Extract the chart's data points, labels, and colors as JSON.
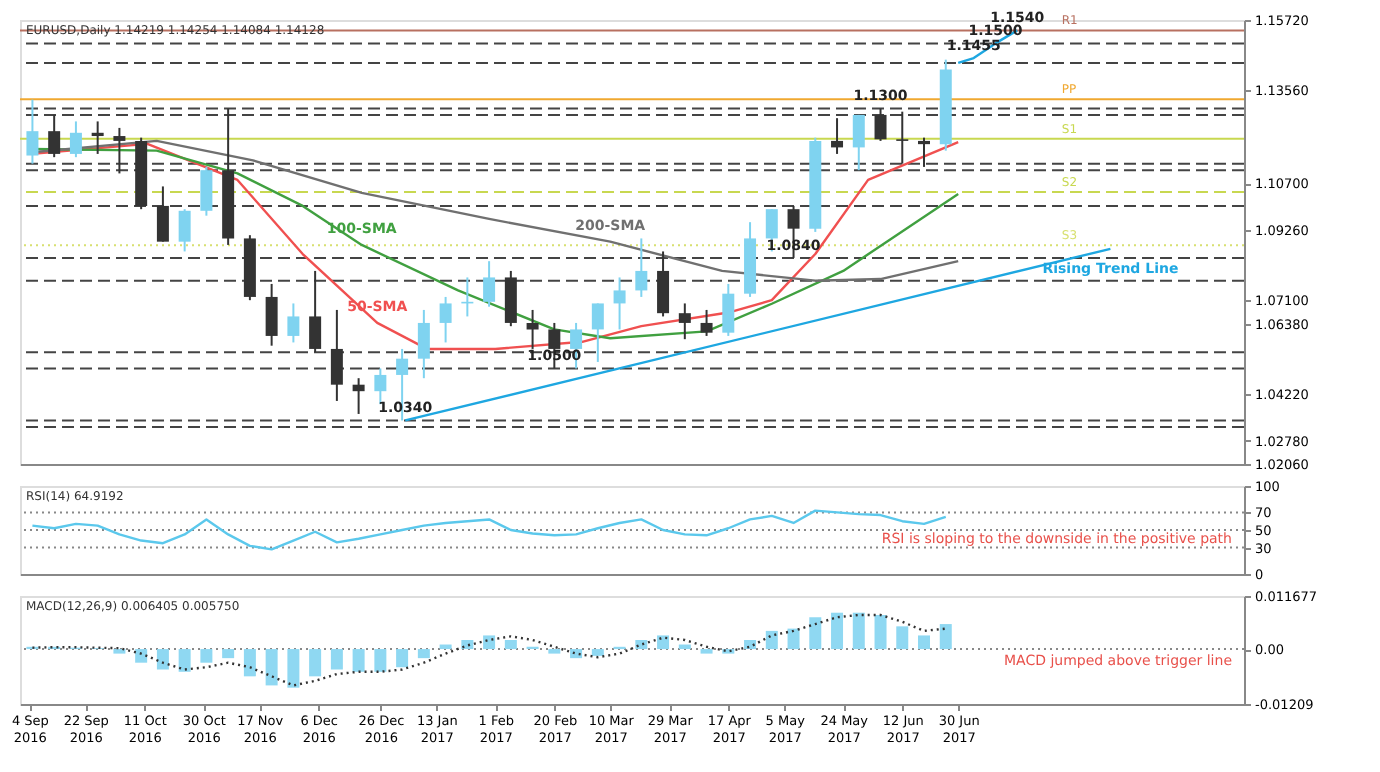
{
  "chart_data": [
    {
      "type": "candlestick",
      "x": [
        "2016-09-05",
        "2016-09-12",
        "2016-09-19",
        "2016-09-26",
        "2016-10-03",
        "2016-10-10",
        "2016-10-17",
        "2016-10-24",
        "2016-10-31",
        "2016-11-07",
        "2016-11-14",
        "2016-11-21",
        "2016-11-28",
        "2016-12-05",
        "2016-12-12",
        "2016-12-19",
        "2016-12-26",
        "2017-01-02",
        "2017-01-09",
        "2017-01-16",
        "2017-01-23",
        "2017-01-30",
        "2017-02-06",
        "2017-02-13",
        "2017-02-20",
        "2017-02-27",
        "2017-03-06",
        "2017-03-13",
        "2017-03-20",
        "2017-03-27",
        "2017-04-03",
        "2017-04-10",
        "2017-04-17",
        "2017-04-24",
        "2017-05-01",
        "2017-05-08",
        "2017-05-15",
        "2017-05-22",
        "2017-05-29",
        "2017-06-05",
        "2017-06-12",
        "2017-06-19",
        "2017-06-26"
      ],
      "ohlc": [
        [
          1.1155,
          1.1327,
          1.113,
          1.123
        ],
        [
          1.123,
          1.128,
          1.115,
          1.116
        ],
        [
          1.116,
          1.126,
          1.115,
          1.1225
        ],
        [
          1.1225,
          1.126,
          1.116,
          1.1215
        ],
        [
          1.1215,
          1.124,
          1.11,
          1.12
        ],
        [
          1.12,
          1.121,
          1.099,
          1.1
        ],
        [
          1.1,
          1.106,
          1.089,
          1.089
        ],
        [
          1.089,
          1.099,
          1.086,
          1.0985
        ],
        [
          1.0985,
          1.112,
          1.097,
          1.111
        ],
        [
          1.111,
          1.13,
          1.088,
          1.09
        ],
        [
          1.09,
          1.091,
          1.071,
          1.072
        ],
        [
          1.072,
          1.076,
          1.057,
          1.06
        ],
        [
          1.06,
          1.07,
          1.058,
          1.066
        ],
        [
          1.066,
          1.08,
          1.055,
          1.056
        ],
        [
          1.056,
          1.068,
          1.04,
          1.045
        ],
        [
          1.045,
          1.047,
          1.036,
          1.043
        ],
        [
          1.043,
          1.05,
          1.039,
          1.048
        ],
        [
          1.048,
          1.056,
          1.034,
          1.053
        ],
        [
          1.053,
          1.068,
          1.047,
          1.064
        ],
        [
          1.064,
          1.072,
          1.058,
          1.07
        ],
        [
          1.07,
          1.078,
          1.066,
          1.0705
        ],
        [
          1.0705,
          1.083,
          1.069,
          1.078
        ],
        [
          1.078,
          1.08,
          1.063,
          1.064
        ],
        [
          1.064,
          1.068,
          1.056,
          1.062
        ],
        [
          1.062,
          1.064,
          1.05,
          1.056
        ],
        [
          1.056,
          1.064,
          1.05,
          1.062
        ],
        [
          1.062,
          1.07,
          1.052,
          1.07
        ],
        [
          1.07,
          1.078,
          1.062,
          1.074
        ],
        [
          1.074,
          1.09,
          1.072,
          1.08
        ],
        [
          1.08,
          1.086,
          1.066,
          1.067
        ],
        [
          1.067,
          1.07,
          1.059,
          1.064
        ],
        [
          1.064,
          1.068,
          1.06,
          1.061
        ],
        [
          1.061,
          1.076,
          1.06,
          1.073
        ],
        [
          1.073,
          1.095,
          1.072,
          1.09
        ],
        [
          1.09,
          1.099,
          1.086,
          1.099
        ],
        [
          1.099,
          1.1,
          1.084,
          1.093
        ],
        [
          1.093,
          1.121,
          1.092,
          1.12
        ],
        [
          1.12,
          1.127,
          1.116,
          1.118
        ],
        [
          1.118,
          1.128,
          1.111,
          1.128
        ],
        [
          1.128,
          1.13,
          1.12,
          1.1205
        ],
        [
          1.1205,
          1.129,
          1.113,
          1.12
        ],
        [
          1.12,
          1.121,
          1.112,
          1.119
        ],
        [
          1.119,
          1.145,
          1.117,
          1.142
        ]
      ],
      "colors": [
        "#7fd3f0",
        "#333333",
        "#7fd3f0",
        "#333333",
        "#333333",
        "#333333",
        "#333333",
        "#7fd3f0",
        "#7fd3f0",
        "#333333",
        "#333333",
        "#333333",
        "#7fd3f0",
        "#333333",
        "#333333",
        "#333333",
        "#7fd3f0",
        "#7fd3f0",
        "#7fd3f0",
        "#7fd3f0",
        "#7fd3f0",
        "#7fd3f0",
        "#333333",
        "#333333",
        "#333333",
        "#7fd3f0",
        "#7fd3f0",
        "#7fd3f0",
        "#7fd3f0",
        "#333333",
        "#333333",
        "#333333",
        "#7fd3f0",
        "#7fd3f0",
        "#7fd3f0",
        "#333333",
        "#7fd3f0",
        "#333333",
        "#7fd3f0",
        "#333333",
        "#333333",
        "#333333",
        "#7fd3f0"
      ],
      "series": [
        {
          "type": "line",
          "name": "50-SMA",
          "color": "#f05050",
          "x": [
            "2016-09-05",
            "2016-10-12",
            "2016-11-10",
            "2016-12-01",
            "2016-12-25",
            "2017-01-10",
            "2017-02-01",
            "2017-03-01",
            "2017-03-20",
            "2017-04-17",
            "2017-05-01",
            "2017-05-15",
            "2017-06-01",
            "2017-06-30"
          ],
          "values": [
            1.116,
            1.1191,
            1.108,
            1.0852,
            1.064,
            1.056,
            1.056,
            1.0582,
            1.063,
            1.0672,
            1.071,
            1.0852,
            1.108,
            1.1196
          ]
        },
        {
          "type": "line",
          "name": "100-SMA",
          "color": "#40a040",
          "x": [
            "2016-09-05",
            "2016-10-15",
            "2016-11-10",
            "2016-12-01",
            "2016-12-20",
            "2017-01-20",
            "2017-02-20",
            "2017-03-10",
            "2017-04-10",
            "2017-05-01",
            "2017-05-24",
            "2017-06-30"
          ],
          "values": [
            1.1175,
            1.117,
            1.11,
            1.1,
            1.088,
            1.074,
            1.062,
            1.0593,
            1.0614,
            1.0699,
            1.08,
            1.1037
          ]
        },
        {
          "type": "line",
          "name": "200-SMA",
          "color": "#707070",
          "x": [
            "2016-09-05",
            "2016-10-15",
            "2016-11-15",
            "2016-12-20",
            "2017-01-30",
            "2017-03-10",
            "2017-04-15",
            "2017-05-15",
            "2017-06-05",
            "2017-06-30"
          ],
          "values": [
            1.1165,
            1.12,
            1.114,
            1.104,
            1.096,
            1.089,
            1.08,
            1.077,
            1.0775,
            1.083
          ]
        },
        {
          "type": "line",
          "name": "Rising Trend Line",
          "color": "#1ea7e1",
          "x": [
            "2017-01-03",
            "2017-08-18"
          ],
          "values": [
            1.034,
            1.0868
          ]
        },
        {
          "type": "line",
          "color": "#1ea7e1",
          "x": [
            "2017-06-30",
            "2017-07-05",
            "2017-07-12",
            "2017-07-19"
          ],
          "values": [
            1.144,
            1.1455,
            1.15,
            1.154
          ]
        }
      ],
      "xlim": [
        "2016-09-01",
        "2017-09-30"
      ],
      "ylim": [
        1.0206,
        1.1572
      ],
      "yticks": [
        {
          "value": 1.0206,
          "label": "1.02060"
        },
        {
          "value": 1.0278,
          "label": "1.02780"
        },
        {
          "value": 1.0422,
          "label": "1.04220"
        },
        {
          "value": 1.0638,
          "label": "1.06380"
        },
        {
          "value": 1.071,
          "label": "1.07100"
        },
        {
          "value": 1.0926,
          "label": "1.09260"
        },
        {
          "value": 1.107,
          "label": "1.10700"
        },
        {
          "value": 1.1356,
          "label": "1.13560"
        },
        {
          "value": 1.1572,
          "label": "1.15720"
        }
      ],
      "tick_labels": "y",
      "ref_lines": [
        {
          "axis": "y",
          "value": 1.154,
          "label": "R1",
          "color": "#b87060",
          "line_style": "solid"
        },
        {
          "axis": "y",
          "value": 1.1328,
          "label": "PP",
          "color": "#f0a830",
          "line_style": "solid"
        },
        {
          "axis": "y",
          "value": 1.1207,
          "label": "S1",
          "color": "#c8d850",
          "line_style": "solid"
        },
        {
          "axis": "y",
          "value": 1.1043,
          "label": "S2",
          "color": "#c8d850",
          "line_style": "dashed"
        },
        {
          "axis": "y",
          "value": 1.0879,
          "label": "S3",
          "color": "#d8e070",
          "line_style": "dotted"
        },
        {
          "axis": "y",
          "value": 1.15,
          "color": "#444444",
          "line_style": "dashed"
        },
        {
          "axis": "y",
          "value": 1.144,
          "color": "#444444",
          "line_style": "dashed"
        },
        {
          "axis": "y",
          "value": 1.13,
          "color": "#444444",
          "line_style": "dashed"
        },
        {
          "axis": "y",
          "value": 1.128,
          "color": "#444444",
          "line_style": "dashed"
        },
        {
          "axis": "y",
          "value": 1.113,
          "color": "#444444",
          "line_style": "dashed"
        },
        {
          "axis": "y",
          "value": 1.111,
          "color": "#444444",
          "line_style": "dashed"
        },
        {
          "axis": "y",
          "value": 1.1,
          "color": "#444444",
          "line_style": "dashed"
        },
        {
          "axis": "y",
          "value": 1.084,
          "color": "#444444",
          "line_style": "dashed"
        },
        {
          "axis": "y",
          "value": 1.077,
          "color": "#444444",
          "line_style": "dashed"
        },
        {
          "axis": "y",
          "value": 1.055,
          "color": "#444444",
          "line_style": "dashed"
        },
        {
          "axis": "y",
          "value": 1.05,
          "color": "#444444",
          "line_style": "dashed"
        },
        {
          "axis": "y",
          "value": 1.034,
          "color": "#444444",
          "line_style": "dashed"
        },
        {
          "axis": "y",
          "value": 1.032,
          "color": "#444444",
          "line_style": "dashed"
        }
      ],
      "annotations": [
        "EURUSD,Daily 1.14219 1.14254 1.14084 1.14128",
        {
          "text": "1.1300",
          "x": "2017-06-05",
          "y": 1.13
        },
        {
          "text": "1.0840",
          "x": "2017-05-08",
          "y": 1.084
        },
        {
          "text": "1.0500",
          "x": "2017-02-20",
          "y": 1.05
        },
        {
          "text": "1.0340",
          "x": "2017-01-03",
          "y": 1.034
        },
        {
          "text": "1.1455",
          "x": "2017-07-05",
          "y": 1.1455
        },
        {
          "text": "1.1500",
          "x": "2017-07-12",
          "y": 1.15
        },
        {
          "text": "1.1540",
          "x": "2017-07-19",
          "y": 1.154
        }
      ],
      "grid": false
    },
    {
      "type": "line",
      "x": [
        "2016-09-05",
        "2016-09-12",
        "2016-09-19",
        "2016-09-26",
        "2016-10-03",
        "2016-10-10",
        "2016-10-17",
        "2016-10-24",
        "2016-10-31",
        "2016-11-07",
        "2016-11-14",
        "2016-11-21",
        "2016-11-28",
        "2016-12-05",
        "2016-12-12",
        "2016-12-19",
        "2016-12-26",
        "2017-01-02",
        "2017-01-09",
        "2017-01-16",
        "2017-01-23",
        "2017-01-30",
        "2017-02-06",
        "2017-02-13",
        "2017-02-20",
        "2017-02-27",
        "2017-03-06",
        "2017-03-13",
        "2017-03-20",
        "2017-03-27",
        "2017-04-03",
        "2017-04-10",
        "2017-04-17",
        "2017-04-24",
        "2017-05-01",
        "2017-05-08",
        "2017-05-15",
        "2017-05-22",
        "2017-05-29",
        "2017-06-05",
        "2017-06-12",
        "2017-06-19",
        "2017-06-26"
      ],
      "series": [
        {
          "color": "#5bc8ec",
          "values": [
            55,
            52,
            57,
            55,
            45,
            38,
            35,
            45,
            62,
            45,
            32,
            28,
            38,
            48,
            36,
            40,
            45,
            50,
            55,
            58,
            60,
            62,
            50,
            46,
            44,
            45,
            52,
            58,
            62,
            50,
            45,
            44,
            52,
            62,
            66,
            58,
            72,
            70,
            68,
            67,
            60,
            57,
            65
          ]
        }
      ],
      "xlim": [
        "2016-09-01",
        "2017-09-30"
      ],
      "ylim": [
        0,
        100
      ],
      "yticks": [
        0,
        30,
        50,
        70,
        100
      ],
      "tick_labels": "y",
      "ref_lines": [
        {
          "axis": "y",
          "value": 30,
          "color": "#888888",
          "line_style": "dotted"
        },
        {
          "axis": "y",
          "value": 50,
          "color": "#888888",
          "line_style": "dotted"
        },
        {
          "axis": "y",
          "value": 70,
          "color": "#888888",
          "line_style": "dotted"
        }
      ],
      "annotations": [
        "RSI(14) 64.9192",
        "RSI is sloping to the downside in the positive path"
      ],
      "grid": false
    },
    {
      "type": "bar",
      "x": [
        "2016-09-05",
        "2016-09-12",
        "2016-09-19",
        "2016-09-26",
        "2016-10-03",
        "2016-10-10",
        "2016-10-17",
        "2016-10-24",
        "2016-10-31",
        "2016-11-07",
        "2016-11-14",
        "2016-11-21",
        "2016-11-28",
        "2016-12-05",
        "2016-12-12",
        "2016-12-19",
        "2016-12-26",
        "2017-01-02",
        "2017-01-09",
        "2017-01-16",
        "2017-01-23",
        "2017-01-30",
        "2017-02-06",
        "2017-02-13",
        "2017-02-20",
        "2017-02-27",
        "2017-03-06",
        "2017-03-13",
        "2017-03-20",
        "2017-03-27",
        "2017-04-03",
        "2017-04-10",
        "2017-04-17",
        "2017-04-24",
        "2017-05-01",
        "2017-05-08",
        "2017-05-15",
        "2017-05-22",
        "2017-05-29",
        "2017-06-05",
        "2017-06-12",
        "2017-06-19",
        "2017-06-26"
      ],
      "series": [
        {
          "type": "bar",
          "color": "#8fd8f2",
          "values": [
            0.0005,
            0.0005,
            0.0003,
            0.0002,
            -0.001,
            -0.003,
            -0.0045,
            -0.005,
            -0.003,
            -0.002,
            -0.006,
            -0.008,
            -0.0085,
            -0.006,
            -0.0045,
            -0.005,
            -0.005,
            -0.004,
            -0.002,
            0.001,
            0.002,
            0.003,
            0.002,
            0.0005,
            -0.001,
            -0.002,
            -0.0015,
            0.0005,
            0.002,
            0.003,
            0.001,
            -0.001,
            -0.001,
            0.002,
            0.004,
            0.0045,
            0.007,
            0.008,
            0.008,
            0.0075,
            0.005,
            0.003,
            0.0055
          ]
        },
        {
          "type": "line",
          "color": "#333333",
          "line_style": "dotted",
          "values": [
            0.0003,
            0.0004,
            0.0004,
            0.0003,
            0.0002,
            -0.001,
            -0.003,
            -0.0045,
            -0.004,
            -0.003,
            -0.004,
            -0.006,
            -0.008,
            -0.007,
            -0.0055,
            -0.005,
            -0.005,
            -0.0045,
            -0.003,
            -0.001,
            0.0008,
            0.002,
            0.0028,
            0.002,
            0.0005,
            -0.001,
            -0.0018,
            -0.001,
            0.001,
            0.0025,
            0.002,
            0.0005,
            -0.0005,
            0.0005,
            0.003,
            0.004,
            0.0055,
            0.007,
            0.0075,
            0.0075,
            0.006,
            0.004,
            0.0045
          ]
        }
      ],
      "xlim": [
        "2016-09-01",
        "2017-09-30"
      ],
      "xticks": [
        {
          "value": "2016-09-04",
          "label": "4 Sep 2016"
        },
        {
          "value": "2016-09-22",
          "label": "22 Sep 2016"
        },
        {
          "value": "2016-10-11",
          "label": "11 Oct 2016"
        },
        {
          "value": "2016-10-30",
          "label": "30 Oct 2016"
        },
        {
          "value": "2016-11-17",
          "label": "17 Nov 2016"
        },
        {
          "value": "2016-12-06",
          "label": "6 Dec 2016"
        },
        {
          "value": "2016-12-26",
          "label": "26 Dec 2016"
        },
        {
          "value": "2017-01-13",
          "label": "13 Jan 2017"
        },
        {
          "value": "2017-02-01",
          "label": "1 Feb 2017"
        },
        {
          "value": "2017-02-20",
          "label": "20 Feb 2017"
        },
        {
          "value": "2017-03-10",
          "label": "10 Mar 2017"
        },
        {
          "value": "2017-03-29",
          "label": "29 Mar 2017"
        },
        {
          "value": "2017-04-17",
          "label": "17 Apr 2017"
        },
        {
          "value": "2017-05-05",
          "label": "5 May 2017"
        },
        {
          "value": "2017-05-24",
          "label": "24 May 2017"
        },
        {
          "value": "2017-06-12",
          "label": "12 Jun 2017"
        },
        {
          "value": "2017-06-30",
          "label": "30 Jun 2017"
        }
      ],
      "ylim": [
        -0.01209,
        0.011677
      ],
      "yticks": [
        {
          "value": -0.01209,
          "label": "-0.01209"
        },
        {
          "value": 0,
          "label": "0.00"
        },
        {
          "value": 0.011677,
          "label": "0.011677"
        }
      ],
      "ref_lines": [
        {
          "axis": "y",
          "value": 0,
          "color": "#888888",
          "line_style": "dotted"
        }
      ],
      "annotations": [
        "MACD(12,26,9) 0.006405 0.005750",
        "MACD jumped above trigger line"
      ],
      "grid": false
    }
  ]
}
